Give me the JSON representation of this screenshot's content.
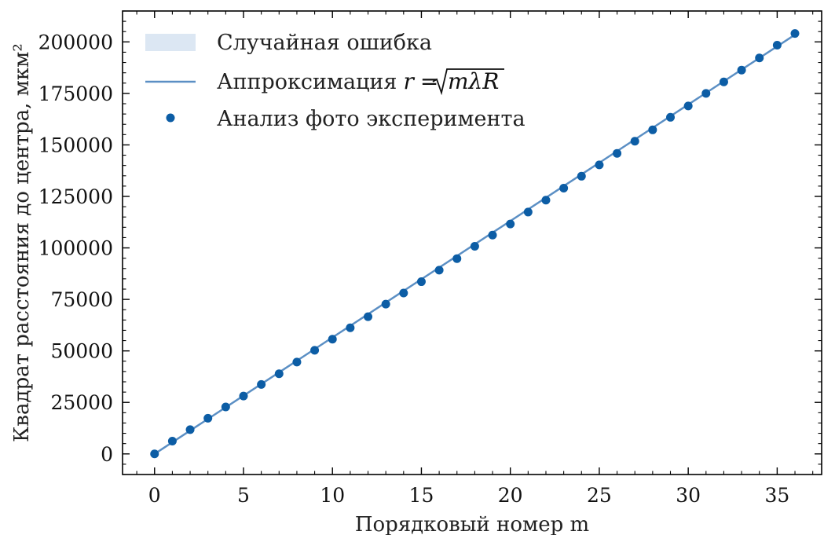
{
  "chart_data": {
    "type": "scatter",
    "xlabel": "Порядковый номер m",
    "ylabel": "Квадрат расстояния до центра, мкм²",
    "xlim": [
      -1.8,
      37.5
    ],
    "ylim": [
      -10000,
      215000
    ],
    "x_ticks": [
      0,
      5,
      10,
      15,
      20,
      25,
      30,
      35
    ],
    "x_tick_labels": [
      "0",
      "5",
      "10",
      "15",
      "20",
      "25",
      "30",
      "35"
    ],
    "y_ticks": [
      0,
      25000,
      50000,
      75000,
      100000,
      125000,
      150000,
      175000,
      200000
    ],
    "y_tick_labels": [
      "0",
      "25000",
      "50000",
      "75000",
      "100000",
      "125000",
      "150000",
      "175000",
      "200000"
    ],
    "grid": false,
    "legend_position": "top-left",
    "colors": {
      "points": "#0c5da5",
      "fit_line": "#5b8fc4",
      "error_band": "#dce7f3"
    },
    "series": [
      {
        "name": "Случайная ошибка",
        "kind": "band",
        "x": [
          0,
          36
        ],
        "y_low": [
          0,
          203500
        ],
        "y_high": [
          0,
          203500
        ]
      },
      {
        "name": "Аппроксимация r = √mλR",
        "kind": "line",
        "x": [
          0,
          36
        ],
        "y": [
          0,
          203500
        ]
      },
      {
        "name": "Анализ фото эксперимента",
        "kind": "points",
        "x": [
          0,
          1,
          2,
          3,
          4,
          5,
          6,
          7,
          8,
          9,
          10,
          11,
          12,
          13,
          14,
          15,
          16,
          17,
          18,
          19,
          20,
          21,
          22,
          23,
          24,
          25,
          26,
          27,
          28,
          29,
          30,
          31,
          32,
          33,
          34,
          35,
          36
        ],
        "y": [
          0,
          6200,
          11800,
          17300,
          22800,
          28100,
          33700,
          38900,
          44600,
          50300,
          55700,
          61200,
          66600,
          72700,
          78100,
          83600,
          89200,
          94800,
          100800,
          106200,
          111600,
          117400,
          123200,
          129000,
          134800,
          140300,
          145900,
          151800,
          157300,
          163400,
          168900,
          175000,
          180600,
          186300,
          192200,
          198400,
          204100
        ]
      }
    ],
    "legend": {
      "error_label": "Случайная ошибка",
      "fit_label_prefix": "Аппроксимация",
      "fit_label_math_r": "r",
      "fit_label_math_eq": "=",
      "fit_label_math_arg": "mλR",
      "points_label": "Анализ фото эксперимента"
    }
  }
}
